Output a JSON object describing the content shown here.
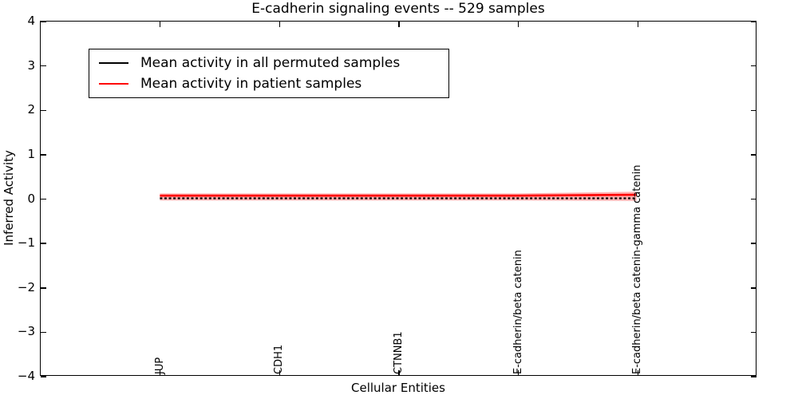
{
  "figure": {
    "title": "E-cadherin signaling events -- 529 samples",
    "xlabel": "Cellular Entities",
    "ylabel": "Inferred Activity"
  },
  "legend": {
    "entries": [
      {
        "label": "Mean activity in all permuted samples",
        "color": "#000000",
        "linestyle": "dotted"
      },
      {
        "label": "Mean activity in patient samples",
        "color": "#ff0000",
        "linestyle": "solid"
      }
    ]
  },
  "chart_data": {
    "type": "line",
    "title": "E-cadherin signaling events -- 529 samples",
    "xlabel": "Cellular Entities",
    "ylabel": "Inferred Activity",
    "categories": [
      "JUP",
      "CDH1",
      "CTNNB1",
      "E-cadherin/beta catenin",
      "E-cadherin/beta catenin-gamma catenin"
    ],
    "x_positions": [
      0,
      1,
      2,
      3,
      4
    ],
    "xlim": [
      -1,
      5
    ],
    "ylim": [
      -4,
      4
    ],
    "yticks": [
      4,
      3,
      2,
      1,
      0,
      -1,
      -2,
      -3,
      -4
    ],
    "ytick_labels": [
      "4",
      "3",
      "2",
      "1",
      "0",
      "−1",
      "−2",
      "−3",
      "−4"
    ],
    "grid": false,
    "legend_position": "upper left",
    "series": [
      {
        "name": "Mean activity in all permuted samples",
        "color": "#000000",
        "linestyle": "dotted",
        "values": [
          0,
          0,
          0,
          0,
          0
        ]
      },
      {
        "name": "Mean activity in patient samples",
        "color": "#ff0000",
        "linestyle": "solid",
        "values": [
          0.06,
          0.06,
          0.06,
          0.06,
          0.08
        ]
      }
    ],
    "band": {
      "name": "patient-samples-spread",
      "color": "#ff0000",
      "alpha": 0.3,
      "upper": [
        0.11,
        0.11,
        0.11,
        0.11,
        0.15
      ],
      "lower": [
        -0.05,
        -0.05,
        -0.05,
        -0.05,
        -0.06
      ]
    }
  }
}
